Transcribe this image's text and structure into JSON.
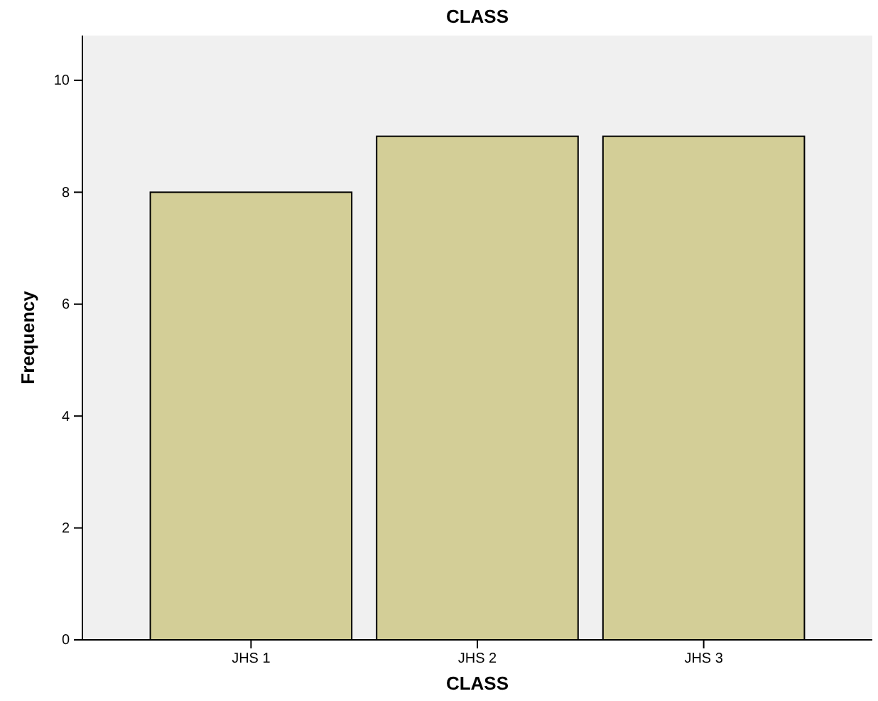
{
  "chart_data": {
    "type": "bar",
    "title": "CLASS",
    "xlabel": "CLASS",
    "ylabel": "Frequency",
    "categories": [
      "JHS 1",
      "JHS 2",
      "JHS 3"
    ],
    "values": [
      8,
      9,
      9
    ],
    "color": "#d3ce97",
    "ylim": [
      0,
      10.8
    ],
    "yticks": [
      0,
      2,
      4,
      6,
      8,
      10
    ],
    "grid": false
  }
}
